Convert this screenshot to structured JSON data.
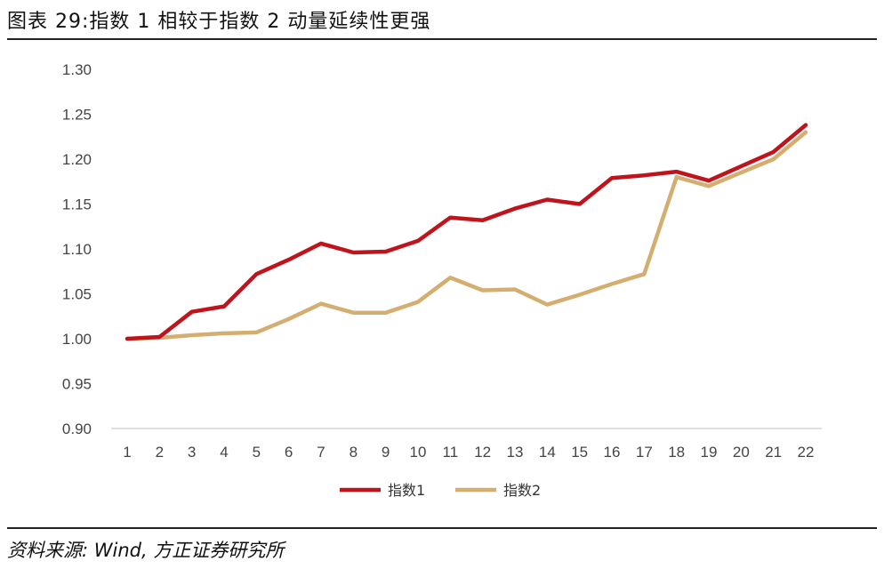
{
  "title": "图表 29:指数 1 相较于指数 2 动量延续性更强",
  "source": "资料来源:  Wind,  方正证券研究所",
  "chart_data": {
    "type": "line",
    "x": [
      1,
      2,
      3,
      4,
      5,
      6,
      7,
      8,
      9,
      10,
      11,
      12,
      13,
      14,
      15,
      16,
      17,
      18,
      19,
      20,
      21,
      22
    ],
    "ylim": [
      0.9,
      1.3
    ],
    "yticks": [
      "0.90",
      "0.95",
      "1.00",
      "1.05",
      "1.10",
      "1.15",
      "1.20",
      "1.25",
      "1.30"
    ],
    "grid": false,
    "legend": "bottom",
    "series": [
      {
        "name": "指数1",
        "color": "#c0141c",
        "values": [
          1.0,
          1.002,
          1.03,
          1.036,
          1.072,
          1.088,
          1.106,
          1.096,
          1.097,
          1.109,
          1.135,
          1.132,
          1.145,
          1.155,
          1.15,
          1.179,
          1.182,
          1.186,
          1.176,
          1.192,
          1.208,
          1.238
        ]
      },
      {
        "name": "指数2",
        "color": "#d4ae71",
        "values": [
          1.0,
          1.001,
          1.004,
          1.006,
          1.007,
          1.022,
          1.039,
          1.029,
          1.029,
          1.041,
          1.068,
          1.054,
          1.055,
          1.038,
          1.049,
          1.061,
          1.072,
          1.18,
          1.17,
          1.185,
          1.2,
          1.23
        ]
      }
    ]
  }
}
